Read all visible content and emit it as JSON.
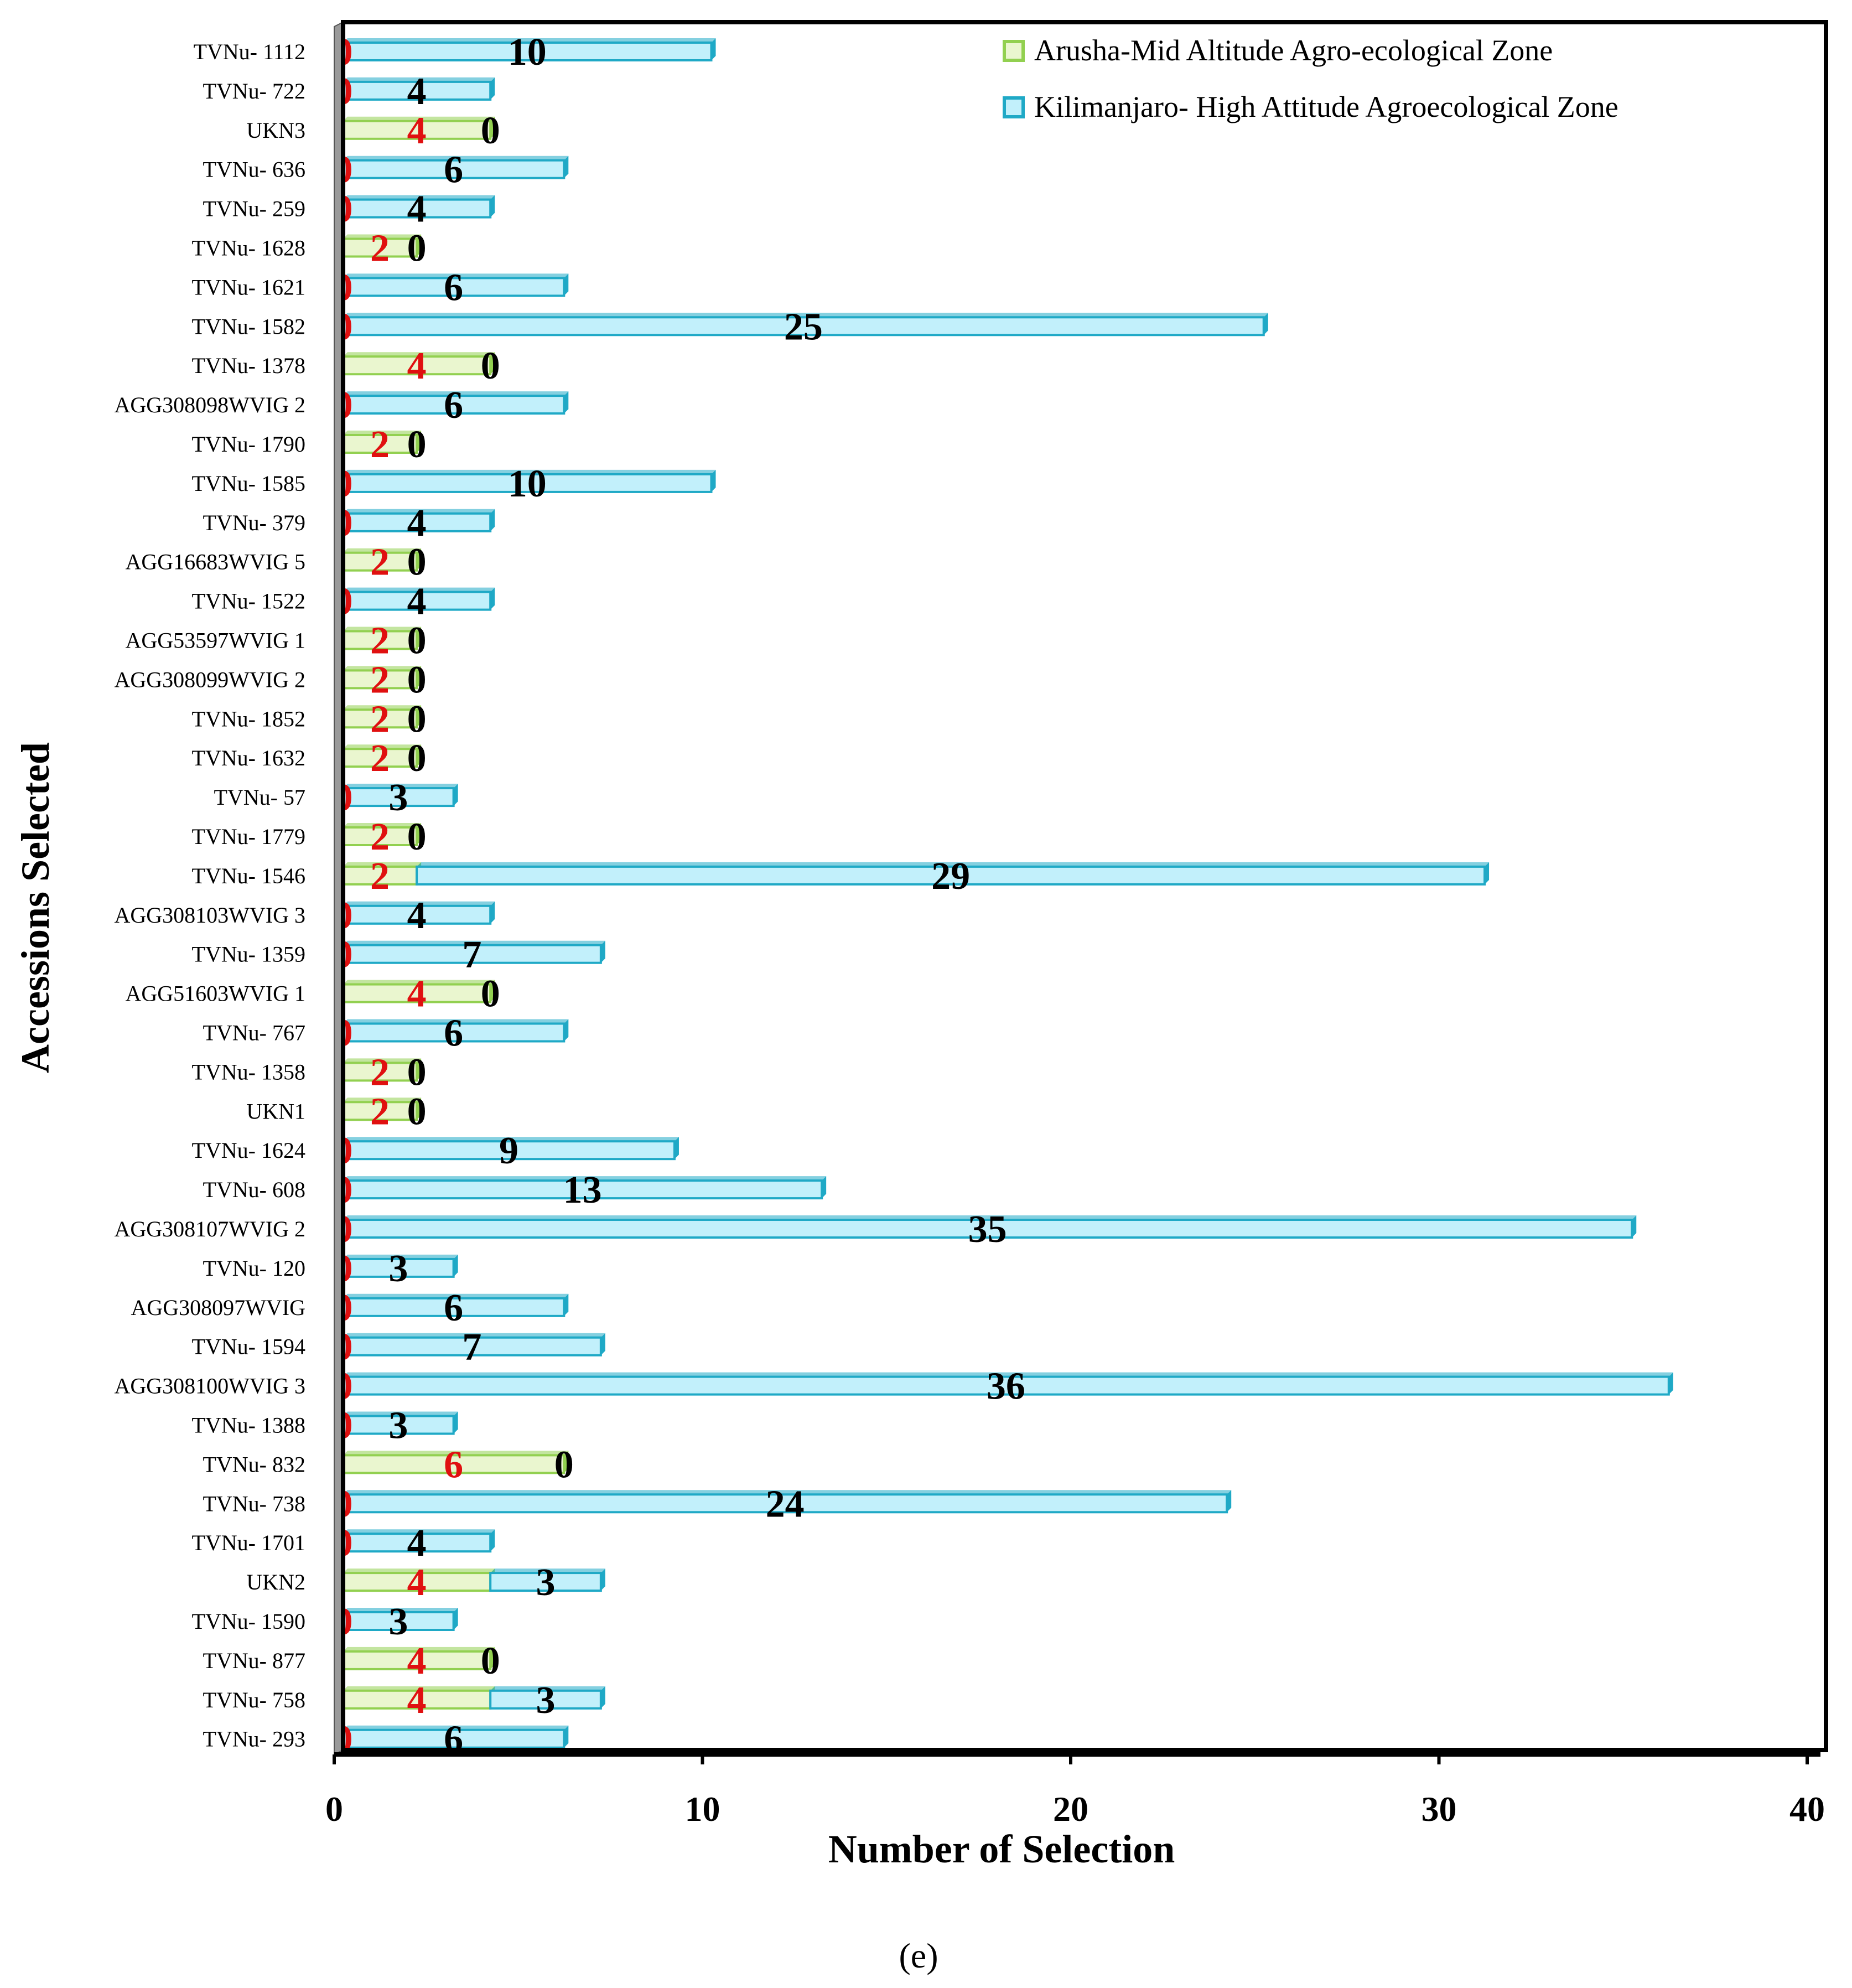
{
  "chart_data": {
    "type": "bar",
    "orientation": "horizontal",
    "stacked": true,
    "ylabel": "Accessions Selected",
    "xlabel": "Number of Selection",
    "xlim": [
      0,
      40
    ],
    "xticks": [
      0,
      10,
      20,
      30,
      40
    ],
    "grid": false,
    "legend_position": "top-right",
    "caption": "(e)",
    "categories": [
      "TVNu- 1112",
      "TVNu- 722",
      "UKN3",
      "TVNu- 636",
      "TVNu- 259",
      "TVNu- 1628",
      "TVNu- 1621",
      "TVNu- 1582",
      "TVNu- 1378",
      "AGG308098WVIG 2",
      "TVNu- 1790",
      "TVNu- 1585",
      "TVNu- 379",
      "AGG16683WVIG 5",
      "TVNu- 1522",
      "AGG53597WVIG 1",
      "AGG308099WVIG 2",
      "TVNu- 1852",
      "TVNu- 1632",
      "TVNu- 57",
      "TVNu- 1779",
      "TVNu- 1546",
      "AGG308103WVIG 3",
      "TVNu- 1359",
      "AGG51603WVIG 1",
      "TVNu- 767",
      "TVNu- 1358",
      "UKN1",
      "TVNu- 1624",
      "TVNu- 608",
      "AGG308107WVIG 2",
      "TVNu- 120",
      "AGG308097WVIG",
      "TVNu- 1594",
      "AGG308100WVIG 3",
      "TVNu- 1388",
      "TVNu- 832",
      "TVNu- 738",
      "TVNu- 1701",
      "UKN2",
      "TVNu- 1590",
      "TVNu- 877",
      "TVNu- 758",
      "TVNu- 293"
    ],
    "series": [
      {
        "name": "Arusha-Mid Altitude Agro-ecological Zone",
        "color": "#92d050",
        "fill": "#eaf6cf",
        "label_color": "#e01010",
        "values": [
          0,
          0,
          4,
          0,
          0,
          2,
          0,
          0,
          4,
          0,
          2,
          0,
          0,
          2,
          0,
          2,
          2,
          2,
          2,
          0,
          2,
          2,
          0,
          0,
          4,
          0,
          2,
          2,
          0,
          0,
          0,
          0,
          0,
          0,
          0,
          0,
          6,
          0,
          0,
          4,
          0,
          4,
          4,
          0
        ]
      },
      {
        "name": "Kilimanjaro- High Attitude Agroecological Zone",
        "color": "#1fa9c6",
        "fill": "#c2f0fb",
        "label_color": "#000000",
        "values": [
          10,
          4,
          0,
          6,
          4,
          0,
          6,
          25,
          0,
          6,
          0,
          10,
          4,
          0,
          4,
          0,
          0,
          0,
          0,
          3,
          0,
          29,
          4,
          7,
          0,
          6,
          0,
          0,
          9,
          13,
          35,
          3,
          6,
          7,
          36,
          3,
          0,
          24,
          4,
          3,
          3,
          0,
          3,
          6
        ]
      }
    ]
  }
}
